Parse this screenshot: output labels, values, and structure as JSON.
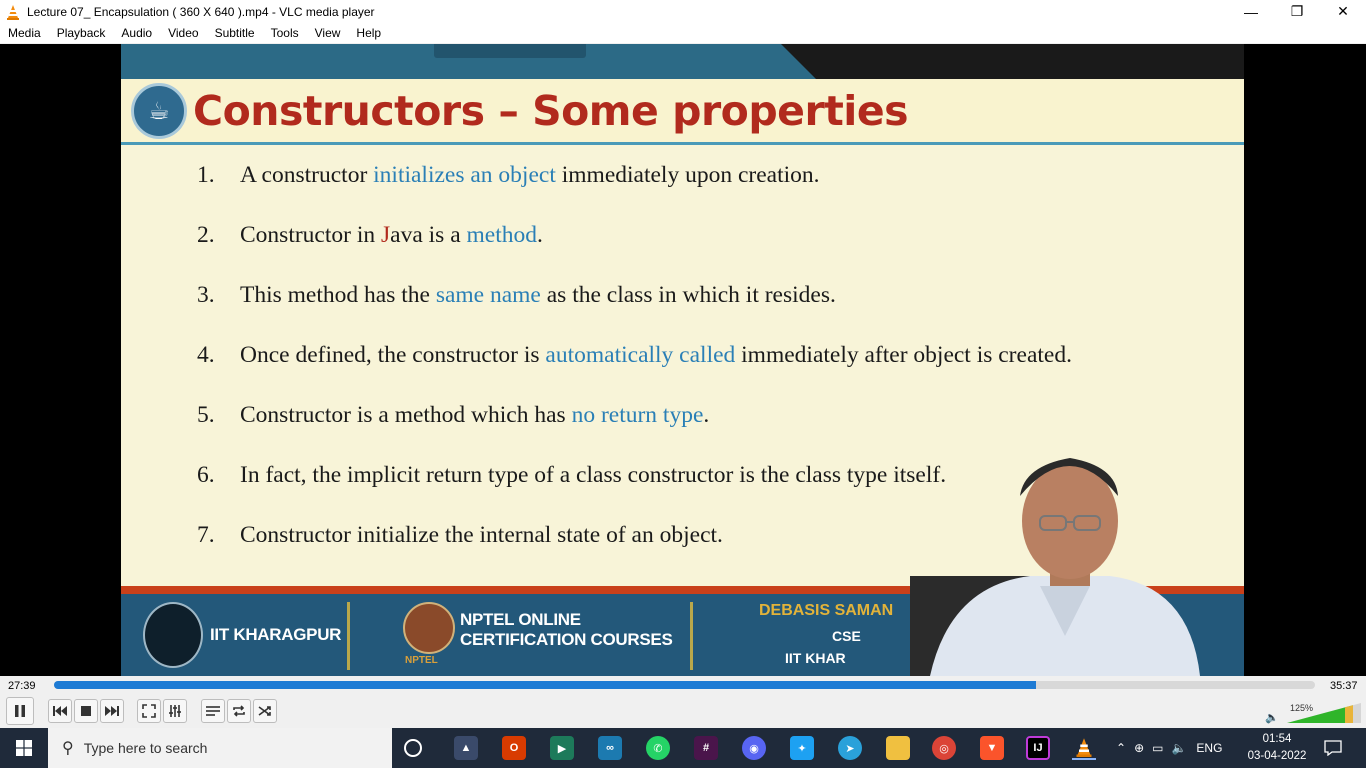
{
  "window": {
    "title": "Lecture 07_ Encapsulation ( 360 X 640 ).mp4 - VLC media player",
    "minimize": "—",
    "maximize": "❐",
    "close": "✕"
  },
  "menu": [
    "Media",
    "Playback",
    "Audio",
    "Video",
    "Subtitle",
    "Tools",
    "View",
    "Help"
  ],
  "slide": {
    "title": "Constructors – Some properties",
    "properties": [
      {
        "num": "1.",
        "parts": [
          {
            "t": "A constructor "
          },
          {
            "t": "initializes an object",
            "hl": true
          },
          {
            "t": " immediately upon creation."
          }
        ]
      },
      {
        "num": "2.",
        "parts": [
          {
            "t": "Constructor in "
          },
          {
            "t": "J",
            "red": true
          },
          {
            "t": "ava is a "
          },
          {
            "t": "method",
            "hl": true
          },
          {
            "t": "."
          }
        ]
      },
      {
        "num": "3.",
        "parts": [
          {
            "t": "This method has the "
          },
          {
            "t": "same name",
            "hl": true
          },
          {
            "t": " as the class in which it resides."
          }
        ]
      },
      {
        "num": "4.",
        "parts": [
          {
            "t": "Once defined, the constructor is "
          },
          {
            "t": "automatically called",
            "hl": true
          },
          {
            "t": " immediately after object is created."
          }
        ]
      },
      {
        "num": "5.",
        "parts": [
          {
            "t": "Constructor is a method which has "
          },
          {
            "t": "no return type",
            "hl": true
          },
          {
            "t": "."
          }
        ]
      },
      {
        "num": "6.",
        "parts": [
          {
            "t": "In fact, the implicit return type of a class constructor is the class type itself."
          }
        ]
      },
      {
        "num": "7.",
        "parts": [
          {
            "t": "Constructor initialize the internal state of an object."
          }
        ]
      }
    ],
    "footer": {
      "institute": "IIT KHARAGPUR",
      "nptel_line1": "NPTEL ONLINE",
      "nptel_line2": "CERTIFICATION COURSES",
      "nptel_sub": "NPTEL",
      "speaker": "DEBASIS SAMAN",
      "dept": "CSE",
      "inst": "IIT KHAR"
    }
  },
  "player": {
    "elapsed": "27:39",
    "total": "35:37",
    "progress": 0.779,
    "volume": "125%"
  },
  "taskbar": {
    "search_placeholder": "Type here to search",
    "language": "ENG",
    "time": "01:54",
    "date": "03-04-2022"
  },
  "colors": {
    "accent": "#1e7bd4",
    "slide_title": "#b12a1d",
    "highlight": "#2a7fb6"
  }
}
